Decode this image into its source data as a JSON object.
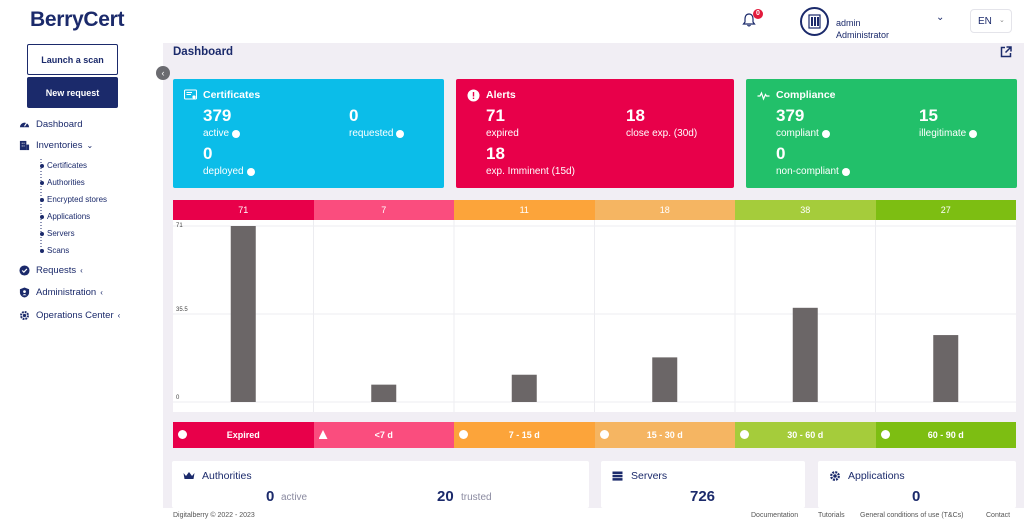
{
  "header": {
    "logo": "BerryCert",
    "notifications": "0",
    "user_name": "admin",
    "user_role": "Administrator",
    "language": "EN"
  },
  "sidebar": {
    "launch_scan": "Launch a scan",
    "new_request": "New request",
    "dashboard": "Dashboard",
    "inventories": "Inventories",
    "inventory_items": [
      "Certificates",
      "Authorities",
      "Encrypted stores",
      "Applications",
      "Servers",
      "Scans"
    ],
    "requests": "Requests",
    "administration": "Administration",
    "operations_center": "Operations Center"
  },
  "main": {
    "title": "Dashboard",
    "cards": {
      "certificates": {
        "title": "Certificates",
        "color": "#0bbde9",
        "active_num": "379",
        "active_lbl": "active",
        "requested_num": "0",
        "requested_lbl": "requested",
        "deployed_num": "0",
        "deployed_lbl": "deployed"
      },
      "alerts": {
        "title": "Alerts",
        "color": "#e8004a",
        "expired_num": "71",
        "expired_lbl": "expired",
        "close_num": "18",
        "close_lbl": "close exp. (30d)",
        "imminent_num": "18",
        "imminent_lbl": "exp. Imminent (15d)"
      },
      "compliance": {
        "title": "Compliance",
        "color": "#22c06a",
        "compliant_num": "379",
        "compliant_lbl": "compliant",
        "illegitimate_num": "15",
        "illegitimate_lbl": "illegitimate",
        "noncompliant_num": "0",
        "noncompliant_lbl": "non-compliant"
      }
    }
  },
  "chart_data": {
    "type": "bar",
    "categories": [
      "Expired",
      "<7 d",
      "7 - 15 d",
      "15 - 30 d",
      "30 - 60 d",
      "60 - 90 d"
    ],
    "values": [
      71,
      7,
      11,
      18,
      38,
      27
    ],
    "header_labels": [
      "71",
      "7",
      "11",
      "18",
      "38",
      "27"
    ],
    "colors": [
      "#e8004a",
      "#fa4d7e",
      "#fca43a",
      "#f5b562",
      "#a5cc3b",
      "#7dbe12"
    ],
    "bar_color": "#6b6667",
    "y_ticks": [
      "71",
      "35.5",
      "0"
    ],
    "ylim": [
      0,
      71
    ],
    "grid": true
  },
  "bottom": {
    "authorities": {
      "title": "Authorities",
      "active_num": "0",
      "active_lbl": "active",
      "trusted_num": "20",
      "trusted_lbl": "trusted"
    },
    "servers": {
      "title": "Servers",
      "num": "726"
    },
    "applications": {
      "title": "Applications",
      "num": "0"
    }
  },
  "footer": {
    "copyright": "Digitalberry © 2022 - 2023",
    "links": [
      "Documentation",
      "Tutorials",
      "General conditions of use (T&Cs)",
      "Contact"
    ]
  }
}
